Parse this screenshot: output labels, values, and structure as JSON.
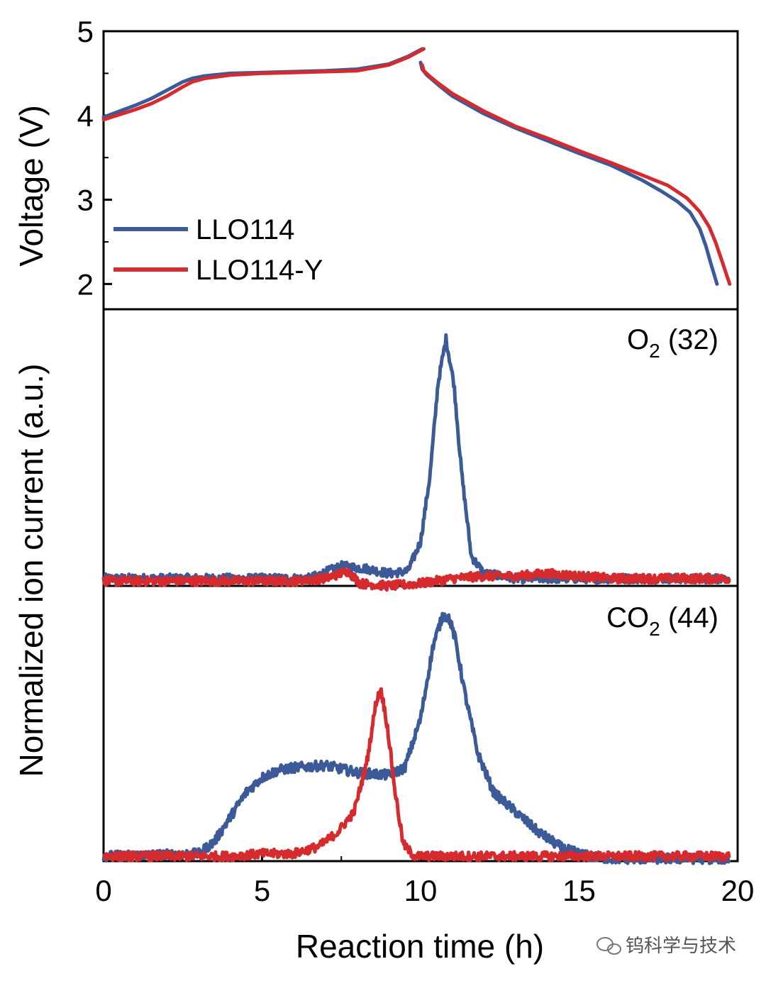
{
  "chart_data": [
    {
      "type": "line",
      "panel": "voltage",
      "ylabel": "Voltage (V)",
      "ylim": [
        1.7,
        5.0
      ],
      "yticks": [
        2,
        3,
        4,
        5
      ],
      "xlim": [
        0,
        20
      ],
      "legend": {
        "placement": "bottom-left",
        "entries": [
          "LLO114",
          "LLO114-Y"
        ]
      },
      "series": [
        {
          "name": "LLO114",
          "color": "#3d5a98",
          "charge": {
            "x": [
              0,
              0.5,
              1,
              1.5,
              2,
              2.5,
              2.8,
              3.2,
              4,
              5,
              6,
              7,
              8,
              9,
              9.6,
              10.05
            ],
            "y": [
              3.98,
              4.05,
              4.12,
              4.2,
              4.3,
              4.4,
              4.44,
              4.47,
              4.5,
              4.51,
              4.52,
              4.53,
              4.55,
              4.61,
              4.7,
              4.79
            ]
          },
          "discharge": {
            "x": [
              10.0,
              10.05,
              10.2,
              10.6,
              11,
              12,
              13,
              14,
              15,
              16,
              17,
              17.6,
              18.1,
              18.5,
              18.8,
              19.0,
              19.15,
              19.35
            ],
            "y": [
              4.63,
              4.55,
              4.48,
              4.35,
              4.23,
              4.02,
              3.85,
              3.7,
              3.55,
              3.41,
              3.23,
              3.1,
              2.98,
              2.85,
              2.66,
              2.45,
              2.25,
              2.0
            ]
          }
        },
        {
          "name": "LLO114-Y",
          "color": "#d62b2e",
          "charge": {
            "x": [
              0,
              0.5,
              1,
              1.5,
              2,
              2.5,
              2.8,
              3.2,
              4,
              5,
              6,
              7,
              8,
              9,
              9.6,
              10.1
            ],
            "y": [
              3.95,
              4.01,
              4.07,
              4.14,
              4.23,
              4.34,
              4.4,
              4.44,
              4.48,
              4.5,
              4.51,
              4.52,
              4.53,
              4.6,
              4.69,
              4.79
            ]
          },
          "discharge": {
            "x": [
              10.05,
              10.1,
              10.3,
              10.6,
              11,
              12,
              13,
              14,
              15,
              16,
              17,
              17.8,
              18.4,
              18.8,
              19.1,
              19.3,
              19.5,
              19.75
            ],
            "y": [
              4.6,
              4.53,
              4.46,
              4.37,
              4.26,
              4.05,
              3.87,
              3.73,
              3.58,
              3.44,
              3.29,
              3.17,
              3.02,
              2.86,
              2.68,
              2.5,
              2.28,
              2.0
            ]
          }
        }
      ]
    },
    {
      "type": "line",
      "panel": "O2",
      "annotation": {
        "main": "O",
        "sub": "2",
        "rest": " (32)"
      },
      "ylim": [
        0,
        1.12
      ],
      "xlim": [
        0,
        20
      ],
      "series": [
        {
          "name": "LLO114",
          "color": "#3d5a98",
          "baseline": 0.0,
          "x": [
            0,
            6.5,
            7.5,
            8.3,
            9,
            9.6,
            10.0,
            10.3,
            10.55,
            10.8,
            11.05,
            11.3,
            11.6,
            12,
            13,
            20
          ],
          "y": [
            0.03,
            0.03,
            0.08,
            0.07,
            0.05,
            0.06,
            0.18,
            0.45,
            0.82,
            1.0,
            0.82,
            0.45,
            0.12,
            0.05,
            0.03,
            0.03
          ],
          "noise": 0.018
        },
        {
          "name": "LLO114-Y",
          "color": "#d62b2e",
          "x": [
            0,
            6,
            7,
            7.7,
            8.1,
            9,
            10,
            11,
            12,
            13,
            14,
            15,
            16,
            17,
            18,
            19,
            20
          ],
          "y": [
            0.02,
            0.02,
            0.03,
            0.06,
            0.01,
            0.0,
            0.01,
            0.03,
            0.04,
            0.04,
            0.05,
            0.04,
            0.03,
            0.03,
            0.03,
            0.03,
            0.03
          ],
          "noise": 0.018
        }
      ]
    },
    {
      "type": "line",
      "panel": "CO2",
      "annotation": {
        "main": "CO",
        "sub": "2",
        "rest": " (44)"
      },
      "ylim": [
        0,
        1.12
      ],
      "xlim": [
        0,
        20
      ],
      "series": [
        {
          "name": "LLO114",
          "color": "#3d5a98",
          "x": [
            0,
            3,
            3.5,
            4,
            4.5,
            5,
            5.5,
            6,
            7,
            8,
            9,
            9.5,
            10,
            10.4,
            10.7,
            10.9,
            11.1,
            11.4,
            11.8,
            12.3,
            13,
            13.7,
            14.5,
            15.3,
            16,
            20
          ],
          "y": [
            0.02,
            0.03,
            0.08,
            0.18,
            0.28,
            0.34,
            0.37,
            0.38,
            0.39,
            0.36,
            0.35,
            0.38,
            0.58,
            0.88,
            1.0,
            0.99,
            0.9,
            0.68,
            0.44,
            0.28,
            0.2,
            0.12,
            0.05,
            0.02,
            0.01,
            0.01
          ],
          "noise": 0.02
        },
        {
          "name": "LLO114-Y",
          "color": "#d62b2e",
          "x": [
            0,
            4,
            5,
            6,
            6.8,
            7.4,
            7.9,
            8.3,
            8.6,
            8.75,
            8.95,
            9.2,
            9.45,
            9.8,
            10.5,
            20
          ],
          "y": [
            0.02,
            0.02,
            0.03,
            0.03,
            0.06,
            0.12,
            0.2,
            0.4,
            0.65,
            0.7,
            0.55,
            0.28,
            0.07,
            0.02,
            0.02,
            0.02
          ],
          "noise": 0.018
        }
      ]
    }
  ],
  "shared_axis": {
    "xlabel": "Reaction time (h)",
    "xticks": [
      0,
      5,
      10,
      15,
      20
    ],
    "ylabel_lower": "Normalized ion current (a.u.)"
  },
  "watermark": "钨科学与技术"
}
